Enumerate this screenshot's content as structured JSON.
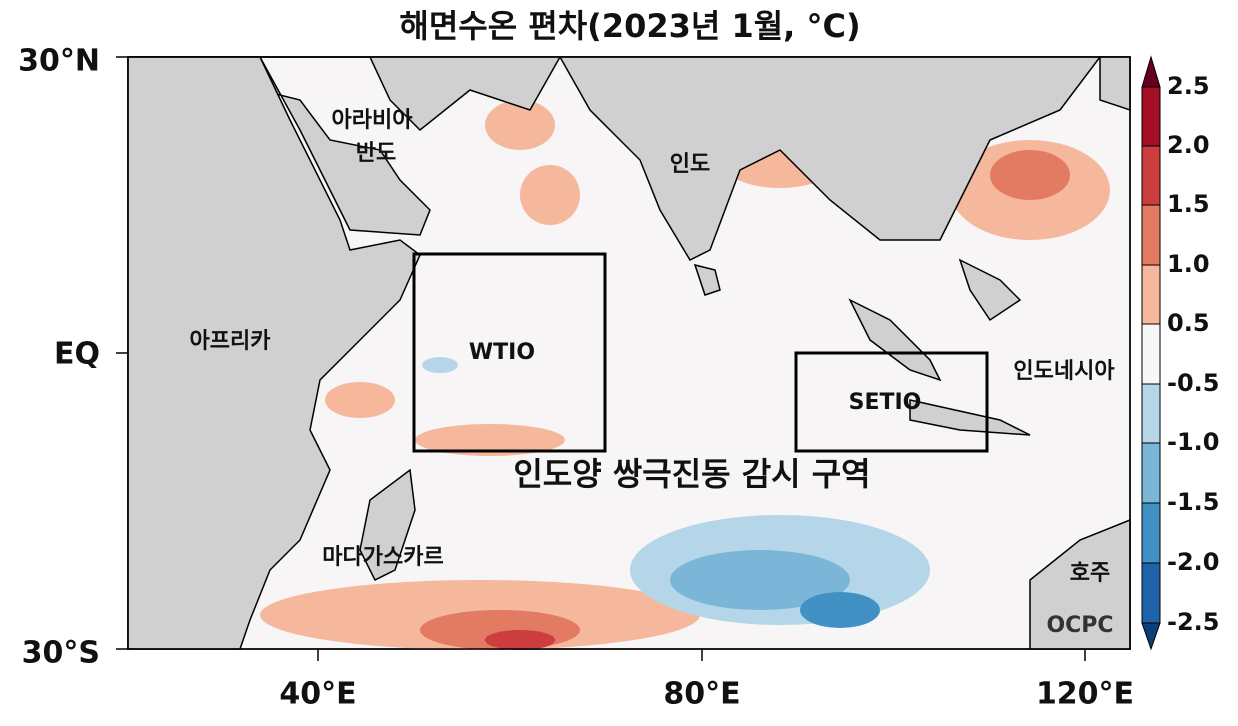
{
  "title": "해면수온 편차(2023년 1월, °C)",
  "lat_labels": [
    "30°N",
    "EQ",
    "30°S"
  ],
  "lon_labels": [
    "40°E",
    "80°E",
    "120°E"
  ],
  "regions": {
    "arabia": [
      "아라비아",
      "반도"
    ],
    "india": "인도",
    "africa": "아프리카",
    "indonesia": "인도네시아",
    "madagascar": "마다가스카르",
    "australia": "호주"
  },
  "boxes": {
    "west": "WTIO",
    "southeast": "SETIO",
    "caption": "인도양 쌍극진동 감시 구역"
  },
  "colorbar_labels": [
    "2.5",
    "2.0",
    "1.5",
    "1.0",
    "0.5",
    "-0.5",
    "-1.0",
    "-1.5",
    "-2.0",
    "-2.5"
  ],
  "logo": "OCPC"
}
